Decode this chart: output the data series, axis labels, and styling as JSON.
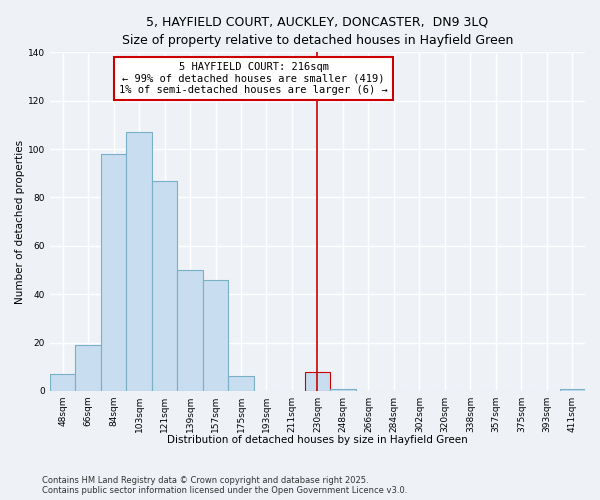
{
  "title": "5, HAYFIELD COURT, AUCKLEY, DONCASTER,  DN9 3LQ",
  "subtitle": "Size of property relative to detached houses in Hayfield Green",
  "xlabel": "Distribution of detached houses by size in Hayfield Green",
  "ylabel": "Number of detached properties",
  "bin_labels": [
    "48sqm",
    "66sqm",
    "84sqm",
    "103sqm",
    "121sqm",
    "139sqm",
    "157sqm",
    "175sqm",
    "193sqm",
    "211sqm",
    "230sqm",
    "248sqm",
    "266sqm",
    "284sqm",
    "302sqm",
    "320sqm",
    "338sqm",
    "357sqm",
    "375sqm",
    "393sqm",
    "411sqm"
  ],
  "bar_values": [
    7,
    19,
    98,
    107,
    87,
    50,
    46,
    6,
    0,
    0,
    8,
    1,
    0,
    0,
    0,
    0,
    0,
    0,
    0,
    0,
    1
  ],
  "bar_color": "#c8ddef",
  "bar_edge_color": "#7aafc8",
  "highlight_bar_index": 10,
  "highlight_bar_color": "#c8ddef",
  "highlight_bar_edge_color": "#cc0000",
  "vline_x": 10.0,
  "vline_color": "#cc0000",
  "annotation_text": "5 HAYFIELD COURT: 216sqm\n← 99% of detached houses are smaller (419)\n1% of semi-detached houses are larger (6) →",
  "annotation_box_color": "#ffffff",
  "annotation_box_edge_color": "#cc0000",
  "ylim": [
    0,
    140
  ],
  "yticks": [
    0,
    20,
    40,
    60,
    80,
    100,
    120,
    140
  ],
  "footnote1": "Contains HM Land Registry data © Crown copyright and database right 2025.",
  "footnote2": "Contains public sector information licensed under the Open Government Licence v3.0.",
  "background_color": "#eef2f7",
  "grid_color": "#ffffff",
  "title_fontsize": 9,
  "subtitle_fontsize": 8,
  "axis_label_fontsize": 7.5,
  "tick_fontsize": 6.5,
  "annotation_fontsize": 7.5,
  "footnote_fontsize": 6
}
